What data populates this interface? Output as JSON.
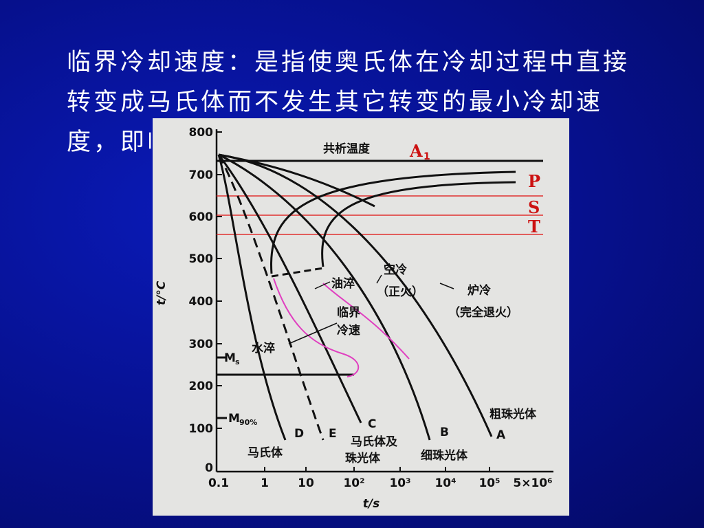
{
  "slide": {
    "text": "临界冷却速度：是指使奥氏体在冷却过程中直接转变成马氏体而不发生其它转变的最小冷却速度，即临界淬火速度。"
  },
  "figure": {
    "y_axis": {
      "label": "t/°C",
      "ticks": [
        "800",
        "700",
        "600",
        "500",
        "400",
        "300",
        "200",
        "100",
        "0"
      ]
    },
    "x_axis": {
      "label": "t/s",
      "ticks": [
        "0.1",
        "1",
        "10",
        "10²",
        "10³",
        "10⁴",
        "10⁵",
        "5×10⁶"
      ]
    },
    "labels": {
      "eutectoid": "共析温度",
      "a1": "A",
      "a1_sub": "1",
      "p": "P",
      "s": "S",
      "t": "T",
      "air": "空冷",
      "air_sub": "（正火）",
      "furnace": "炉冷",
      "furnace_sub": "（完全退火）",
      "oil": "油淬",
      "critical_1": "临界",
      "critical_2": "冷速",
      "water": "水淬",
      "ms": "M",
      "ms_sub": "s",
      "m90": "M",
      "m90_sub": "90%",
      "coarse": "粗珠光体",
      "fine": "细珠光体",
      "martensite": "马氏体",
      "mixed_1": "马氏体及",
      "mixed_2": "珠光体",
      "curve_a": "A",
      "curve_b": "B",
      "curve_c": "C",
      "curve_d": "D",
      "curve_e": "E"
    }
  }
}
